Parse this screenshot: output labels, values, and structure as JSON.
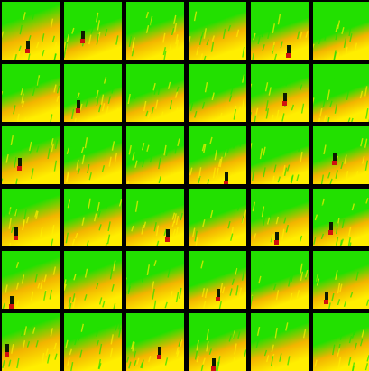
{
  "grid": {
    "rows": 6,
    "cols": 6,
    "colors": {
      "background": "#000000",
      "green": "#22e000",
      "yellow": "#ffee00",
      "orange": "#f2b400",
      "red": "#d01010",
      "dark": "#0c1a00"
    },
    "tiles": [
      {
        "yellow_level": 0.65,
        "marker": true
      },
      {
        "yellow_level": 0.45,
        "marker": true
      },
      {
        "yellow_level": 0.5,
        "marker": false
      },
      {
        "yellow_level": 0.55,
        "marker": false
      },
      {
        "yellow_level": 0.45,
        "marker": true
      },
      {
        "yellow_level": 0.4,
        "marker": false
      },
      {
        "yellow_level": 0.5,
        "marker": false
      },
      {
        "yellow_level": 0.35,
        "marker": true
      },
      {
        "yellow_level": 0.45,
        "marker": false
      },
      {
        "yellow_level": 0.4,
        "marker": false
      },
      {
        "yellow_level": 0.5,
        "marker": true
      },
      {
        "yellow_level": 0.4,
        "marker": false
      },
      {
        "yellow_level": 0.55,
        "marker": true
      },
      {
        "yellow_level": 0.45,
        "marker": false
      },
      {
        "yellow_level": 0.4,
        "marker": false
      },
      {
        "yellow_level": 0.45,
        "marker": true
      },
      {
        "yellow_level": 0.4,
        "marker": false
      },
      {
        "yellow_level": 0.45,
        "marker": true
      },
      {
        "yellow_level": 0.6,
        "marker": true
      },
      {
        "yellow_level": 0.5,
        "marker": false
      },
      {
        "yellow_level": 0.45,
        "marker": true
      },
      {
        "yellow_level": 0.45,
        "marker": false
      },
      {
        "yellow_level": 0.5,
        "marker": true
      },
      {
        "yellow_level": 0.4,
        "marker": true
      },
      {
        "yellow_level": 0.6,
        "marker": true
      },
      {
        "yellow_level": 0.55,
        "marker": false
      },
      {
        "yellow_level": 0.5,
        "marker": false
      },
      {
        "yellow_level": 0.45,
        "marker": true
      },
      {
        "yellow_level": 0.4,
        "marker": false
      },
      {
        "yellow_level": 0.5,
        "marker": true
      },
      {
        "yellow_level": 0.65,
        "marker": true
      },
      {
        "yellow_level": 0.55,
        "marker": false
      },
      {
        "yellow_level": 0.5,
        "marker": true
      },
      {
        "yellow_level": 0.5,
        "marker": true
      },
      {
        "yellow_level": 0.55,
        "marker": false
      },
      {
        "yellow_level": 0.5,
        "marker": false
      }
    ]
  }
}
